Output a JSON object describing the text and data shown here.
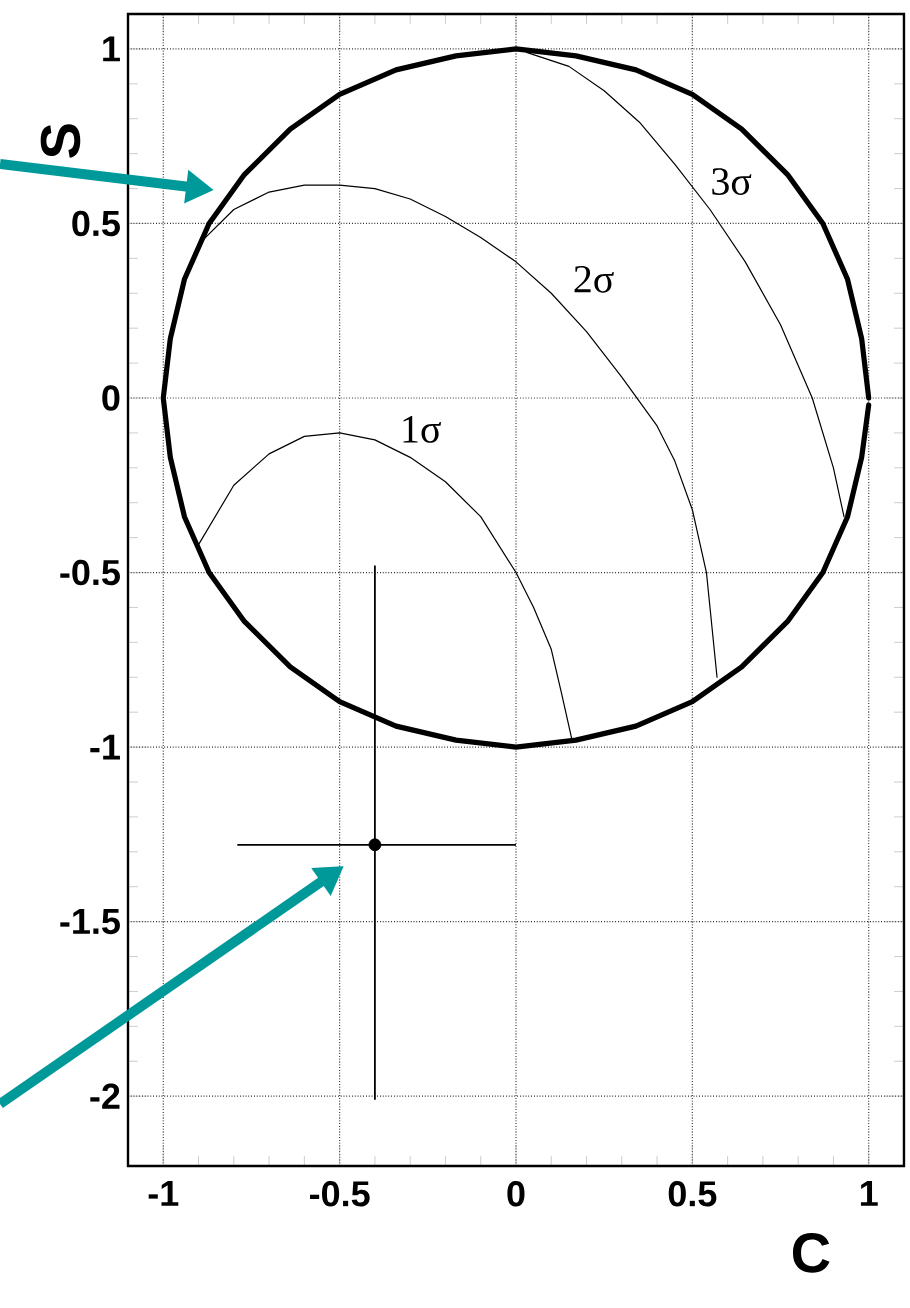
{
  "chart_data": {
    "type": "line",
    "xlabel": "C",
    "ylabel": "S",
    "xlim": [
      -1.1,
      1.1
    ],
    "ylim": [
      -2.2,
      1.1
    ],
    "xticks": [
      -1,
      -0.5,
      0,
      0.5,
      1
    ],
    "yticks": [
      -2,
      -1.5,
      -1,
      -0.5,
      0,
      0.5,
      1
    ],
    "grid": true,
    "marker": "none",
    "line_style": "solid",
    "series": [
      {
        "color": "#000000",
        "x": [
          1.0,
          0.98,
          0.94,
          0.87,
          0.77,
          0.64,
          0.5,
          0.34,
          0.17,
          0,
          -0.17,
          -0.34,
          -0.5,
          -0.64,
          -0.77,
          -0.87,
          -0.94,
          -0.98,
          -1,
          -0.98,
          -0.94,
          -0.87,
          -0.77,
          -0.64,
          -0.5,
          -0.34,
          -0.17,
          0,
          0.17,
          0.34,
          0.5,
          0.64,
          0.77,
          0.87,
          0.94,
          0.98,
          1
        ],
        "values": [
          0,
          0.17,
          0.34,
          0.5,
          0.64,
          0.77,
          0.87,
          0.94,
          0.98,
          1,
          0.98,
          0.94,
          0.87,
          0.77,
          0.64,
          0.5,
          0.34,
          0.17,
          0,
          -0.17,
          -0.34,
          -0.5,
          -0.64,
          -0.77,
          -0.87,
          -0.94,
          -0.98,
          -1,
          -0.98,
          -0.94,
          -0.87,
          -0.77,
          -0.64,
          -0.5,
          -0.34,
          -0.17,
          -0.02
        ]
      },
      {
        "color": "#000000",
        "x": [
          -0.9,
          -0.8,
          -0.7,
          -0.6,
          -0.5,
          -0.4,
          -0.3,
          -0.2,
          -0.1,
          0,
          0.05,
          0.1,
          0.13,
          0.16
        ],
        "values": [
          -0.42,
          -0.25,
          -0.16,
          -0.11,
          -0.1,
          -0.12,
          -0.17,
          -0.24,
          -0.34,
          -0.5,
          -0.6,
          -0.72,
          -0.85,
          -0.985
        ]
      },
      {
        "color": "#000000",
        "x": [
          -0.9,
          -0.8,
          -0.7,
          -0.6,
          -0.5,
          -0.4,
          -0.3,
          -0.2,
          -0.1,
          0,
          0.1,
          0.2,
          0.3,
          0.4,
          0.45,
          0.5,
          0.54,
          0.57
        ],
        "values": [
          0.44,
          0.54,
          0.59,
          0.61,
          0.61,
          0.6,
          0.57,
          0.52,
          0.46,
          0.39,
          0.3,
          0.19,
          0.06,
          -0.08,
          -0.18,
          -0.32,
          -0.5,
          -0.8
        ]
      },
      {
        "color": "#000000",
        "x": [
          0.03,
          0.15,
          0.25,
          0.35,
          0.45,
          0.55,
          0.65,
          0.75,
          0.84,
          0.9,
          0.93
        ],
        "values": [
          0.99,
          0.95,
          0.88,
          0.79,
          0.67,
          0.54,
          0.39,
          0.21,
          0.0,
          -0.2,
          -0.34
        ]
      },
      {
        "type": "scatter",
        "color": "#000000",
        "marker": "circle",
        "x": [
          -0.4
        ],
        "values": [
          -1.28
        ],
        "errors": [
          [
            -2.01,
            -0.48
          ]
        ],
        "xerrors": [
          [
            -0.79,
            0.0
          ]
        ]
      }
    ],
    "annotations": [
      "1σ",
      "2σ",
      "3σ"
    ]
  }
}
